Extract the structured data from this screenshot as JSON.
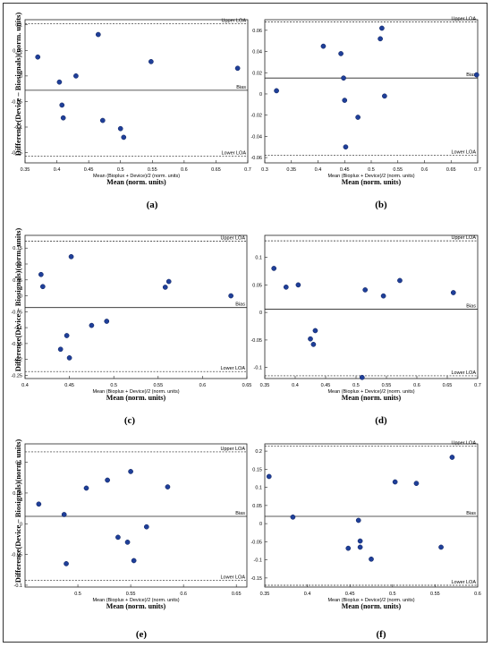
{
  "figure": {
    "y_label": "Difference(Device – Biosignals)(norm. units)",
    "x_label_small": "Mean (Bioplux + Device)/2 (norm. units)",
    "x_label_big": "Mean (norm. units)",
    "upper_loa_label": "Upper LOA",
    "lower_loa_label": "Lower LOA",
    "bias_label": "Bias"
  },
  "chart_data": [
    {
      "type": "scatter",
      "panel_label": "(a)",
      "xlim": [
        0.35,
        0.7
      ],
      "ylim": [
        -0.17,
        0.11
      ],
      "xticks": [
        "0.35",
        "0.4",
        "0.45",
        "0.5",
        "0.55",
        "0.6",
        "0.65",
        "0.7"
      ],
      "yticks": [
        "-0.15",
        "-0.1",
        "-0.05",
        "0",
        "0.05",
        "0.1"
      ],
      "upper_loa": 0.102,
      "bias": -0.028,
      "lower_loa": -0.157,
      "points": [
        [
          0.37,
          0.037
        ],
        [
          0.404,
          -0.012
        ],
        [
          0.408,
          -0.057
        ],
        [
          0.41,
          -0.082
        ],
        [
          0.43,
          0.0
        ],
        [
          0.465,
          0.081
        ],
        [
          0.472,
          -0.087
        ],
        [
          0.5,
          -0.103
        ],
        [
          0.505,
          -0.12
        ],
        [
          0.548,
          0.028
        ],
        [
          0.684,
          0.015
        ]
      ]
    },
    {
      "type": "scatter",
      "panel_label": "(b)",
      "xlim": [
        0.3,
        0.7
      ],
      "ylim": [
        -0.065,
        0.07
      ],
      "xticks": [
        "0.3",
        "0.35",
        "0.4",
        "0.45",
        "0.5",
        "0.55",
        "0.6",
        "0.65",
        "0.7"
      ],
      "yticks": [
        "-0.06",
        "-0.04",
        "-0.02",
        "0",
        "0.02",
        "0.04",
        "0.06"
      ],
      "upper_loa": 0.068,
      "bias": 0.015,
      "lower_loa": -0.058,
      "points": [
        [
          0.322,
          0.003
        ],
        [
          0.41,
          0.045
        ],
        [
          0.443,
          0.038
        ],
        [
          0.448,
          0.015
        ],
        [
          0.45,
          -0.006
        ],
        [
          0.452,
          -0.05
        ],
        [
          0.475,
          -0.022
        ],
        [
          0.517,
          0.052
        ],
        [
          0.52,
          0.062
        ],
        [
          0.525,
          -0.002
        ],
        [
          0.698,
          0.018
        ]
      ]
    },
    {
      "type": "scatter",
      "panel_label": "(c)",
      "xlim": [
        0.4,
        0.65
      ],
      "ylim": [
        -0.26,
        0.19
      ],
      "xticks": [
        "0.4",
        "0.45",
        "0.5",
        "0.55",
        "0.6",
        "0.65"
      ],
      "yticks": [
        "-0.25",
        "-0.2",
        "-0.15",
        "-0.1",
        "-0.05",
        "0",
        "0.05",
        "0.1",
        "0.15"
      ],
      "upper_loa": 0.172,
      "bias": -0.037,
      "lower_loa": -0.238,
      "points": [
        [
          0.418,
          0.067
        ],
        [
          0.42,
          0.029
        ],
        [
          0.44,
          -0.168
        ],
        [
          0.447,
          -0.125
        ],
        [
          0.45,
          -0.195
        ],
        [
          0.452,
          0.123
        ],
        [
          0.475,
          -0.093
        ],
        [
          0.492,
          -0.08
        ],
        [
          0.558,
          0.027
        ],
        [
          0.562,
          0.045
        ],
        [
          0.632,
          0.0
        ]
      ]
    },
    {
      "type": "scatter",
      "panel_label": "(d)",
      "xlim": [
        0.35,
        0.7
      ],
      "ylim": [
        -0.12,
        0.14
      ],
      "xticks": [
        "0.35",
        "0.4",
        "0.45",
        "0.5",
        "0.55",
        "0.6",
        "0.65",
        "0.7"
      ],
      "yticks": [
        "-0.1",
        "-0.05",
        "0",
        "0.05",
        "0.1"
      ],
      "upper_loa": 0.13,
      "bias": 0.006,
      "lower_loa": -0.115,
      "points": [
        [
          0.365,
          0.08
        ],
        [
          0.385,
          0.046
        ],
        [
          0.405,
          0.05
        ],
        [
          0.425,
          -0.048
        ],
        [
          0.43,
          -0.058
        ],
        [
          0.433,
          -0.033
        ],
        [
          0.51,
          -0.118
        ],
        [
          0.515,
          0.041
        ],
        [
          0.545,
          0.03
        ],
        [
          0.572,
          0.058
        ],
        [
          0.66,
          0.036
        ]
      ]
    },
    {
      "type": "scatter",
      "panel_label": "(e)",
      "xlim": [
        0.45,
        0.66
      ],
      "ylim": [
        -0.103,
        0.13
      ],
      "xticks": [
        "0.5",
        "0.55",
        "0.6",
        "0.65"
      ],
      "yticks": [
        "-0.1",
        "-0.05",
        "0",
        "0.05",
        "0.1"
      ],
      "upper_loa": 0.117,
      "bias": 0.012,
      "lower_loa": -0.092,
      "points": [
        [
          0.463,
          0.032
        ],
        [
          0.487,
          0.015
        ],
        [
          0.489,
          -0.065
        ],
        [
          0.508,
          0.058
        ],
        [
          0.528,
          0.071
        ],
        [
          0.538,
          -0.022
        ],
        [
          0.547,
          -0.03
        ],
        [
          0.55,
          0.085
        ],
        [
          0.553,
          -0.06
        ],
        [
          0.565,
          -0.005
        ],
        [
          0.585,
          0.06
        ]
      ]
    },
    {
      "type": "scatter",
      "panel_label": "(f)",
      "xlim": [
        0.35,
        0.6
      ],
      "ylim": [
        -0.175,
        0.22
      ],
      "xticks": [
        "0.35",
        "0.4",
        "0.45",
        "0.5",
        "0.55",
        "0.6"
      ],
      "yticks": [
        "-0.15",
        "-0.1",
        "-0.05",
        "0",
        "0.05",
        "0.1",
        "0.15",
        "0.2"
      ],
      "upper_loa": 0.214,
      "bias": 0.02,
      "lower_loa": -0.17,
      "points": [
        [
          0.355,
          0.13
        ],
        [
          0.383,
          0.018
        ],
        [
          0.448,
          -0.068
        ],
        [
          0.46,
          0.009
        ],
        [
          0.462,
          -0.048
        ],
        [
          0.462,
          -0.065
        ],
        [
          0.475,
          -0.098
        ],
        [
          0.503,
          0.115
        ],
        [
          0.528,
          0.111
        ],
        [
          0.557,
          -0.065
        ],
        [
          0.57,
          0.183
        ]
      ]
    }
  ]
}
